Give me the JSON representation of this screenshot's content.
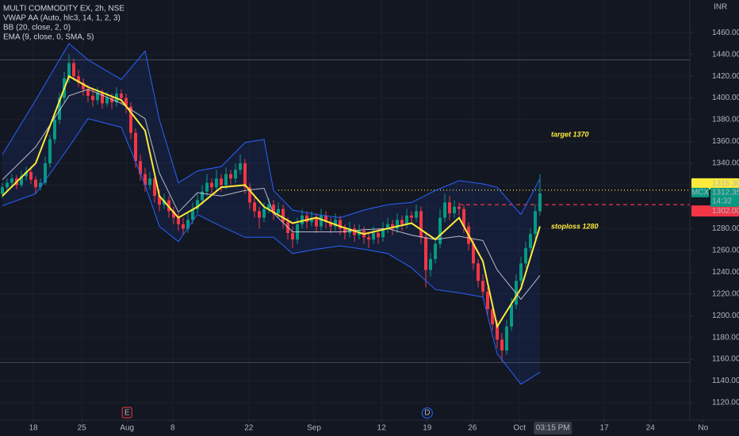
{
  "chart_data": {
    "type": "candlestick",
    "title": "MULTI COMMODITY EX, 2h, NSE",
    "indicator_labels": [
      "VWAP AA (Auto, hlc3, 14, 1, 2, 3)",
      "BB (20, close, 2, 0)",
      "EMA (9, close, 0, SMA, 5)"
    ],
    "currency": "INR",
    "up_color": "#089981",
    "down_color": "#f23645",
    "xlim": [
      -0.5,
      154.83
    ],
    "ylim": [
      1104,
      1490
    ],
    "grid": true,
    "xticks": [
      {
        "value": 6.5,
        "label": "18"
      },
      {
        "value": 16.7,
        "label": "25"
      },
      {
        "value": 26.2,
        "label": "Aug"
      },
      {
        "value": 35.8,
        "label": "8"
      },
      {
        "value": 51.8,
        "label": "22"
      },
      {
        "value": 65.5,
        "label": "Sep"
      },
      {
        "value": 79.7,
        "label": "12"
      },
      {
        "value": 89.3,
        "label": "19"
      },
      {
        "value": 98.8,
        "label": "26"
      },
      {
        "value": 108.7,
        "label": "Oct"
      },
      {
        "value": 115.7,
        "label": "03:15 PM"
      },
      {
        "value": 126.5,
        "label": "17"
      },
      {
        "value": 136.2,
        "label": "24"
      },
      {
        "value": 147.3,
        "label": "No"
      }
    ],
    "yticks": [
      {
        "value": 1120,
        "label": "1120.00"
      },
      {
        "value": 1140,
        "label": "1140.00"
      },
      {
        "value": 1160,
        "label": "1160.00"
      },
      {
        "value": 1180,
        "label": "1180.00"
      },
      {
        "value": 1200,
        "label": "1200.00"
      },
      {
        "value": 1220,
        "label": "1220.00"
      },
      {
        "value": 1240,
        "label": "1240.00"
      },
      {
        "value": 1260,
        "label": "1260.00"
      },
      {
        "value": 1280,
        "label": "1280.00"
      },
      {
        "value": 1300,
        "label": "1300.00"
      },
      {
        "value": 1320,
        "label": "1320.00"
      },
      {
        "value": 1340,
        "label": "1340.00"
      },
      {
        "value": 1360,
        "label": "1360.00"
      },
      {
        "value": 1380,
        "label": "1380.00"
      },
      {
        "value": 1400,
        "label": "1400.00"
      },
      {
        "value": 1420,
        "label": "1420.00"
      },
      {
        "value": 1440,
        "label": "1440.00"
      },
      {
        "value": 1460,
        "label": "1460.00"
      }
    ],
    "candles": [
      [
        1312,
        1322,
        1308,
        1318
      ],
      [
        1318,
        1326,
        1314,
        1322
      ],
      [
        1322,
        1330,
        1318,
        1326
      ],
      [
        1326,
        1329,
        1316,
        1320
      ],
      [
        1320,
        1333,
        1318,
        1328
      ],
      [
        1328,
        1337,
        1324,
        1332
      ],
      [
        1332,
        1335,
        1321,
        1325
      ],
      [
        1325,
        1328,
        1312,
        1318
      ],
      [
        1318,
        1326,
        1315,
        1322
      ],
      [
        1322,
        1346,
        1320,
        1340
      ],
      [
        1340,
        1366,
        1336,
        1362
      ],
      [
        1362,
        1386,
        1358,
        1380
      ],
      [
        1380,
        1405,
        1376,
        1400
      ],
      [
        1400,
        1424,
        1396,
        1418
      ],
      [
        1418,
        1440,
        1414,
        1432
      ],
      [
        1432,
        1436,
        1416,
        1420
      ],
      [
        1420,
        1426,
        1410,
        1414
      ],
      [
        1414,
        1418,
        1402,
        1408
      ],
      [
        1408,
        1412,
        1396,
        1402
      ],
      [
        1402,
        1408,
        1392,
        1398
      ],
      [
        1398,
        1410,
        1394,
        1405
      ],
      [
        1405,
        1408,
        1390,
        1395
      ],
      [
        1395,
        1406,
        1392,
        1400
      ],
      [
        1400,
        1404,
        1390,
        1396
      ],
      [
        1396,
        1410,
        1392,
        1404
      ],
      [
        1404,
        1408,
        1394,
        1400
      ],
      [
        1400,
        1404,
        1386,
        1392
      ],
      [
        1392,
        1396,
        1362,
        1368
      ],
      [
        1368,
        1372,
        1336,
        1342
      ],
      [
        1342,
        1348,
        1324,
        1330
      ],
      [
        1330,
        1336,
        1314,
        1320
      ],
      [
        1320,
        1332,
        1316,
        1326
      ],
      [
        1326,
        1330,
        1304,
        1310
      ],
      [
        1310,
        1316,
        1296,
        1302
      ],
      [
        1302,
        1312,
        1298,
        1306
      ],
      [
        1306,
        1310,
        1290,
        1296
      ],
      [
        1296,
        1300,
        1284,
        1290
      ],
      [
        1290,
        1294,
        1278,
        1284
      ],
      [
        1284,
        1290,
        1274,
        1280
      ],
      [
        1280,
        1294,
        1276,
        1288
      ],
      [
        1288,
        1304,
        1284,
        1298
      ],
      [
        1298,
        1312,
        1294,
        1306
      ],
      [
        1306,
        1320,
        1302,
        1314
      ],
      [
        1314,
        1330,
        1310,
        1322
      ],
      [
        1322,
        1326,
        1312,
        1318
      ],
      [
        1318,
        1334,
        1314,
        1326
      ],
      [
        1326,
        1330,
        1314,
        1320
      ],
      [
        1320,
        1336,
        1316,
        1330
      ],
      [
        1330,
        1334,
        1320,
        1326
      ],
      [
        1326,
        1340,
        1322,
        1334
      ],
      [
        1334,
        1348,
        1330,
        1340
      ],
      [
        1340,
        1344,
        1312,
        1318
      ],
      [
        1318,
        1322,
        1298,
        1304
      ],
      [
        1304,
        1310,
        1290,
        1296
      ],
      [
        1296,
        1300,
        1280,
        1290
      ],
      [
        1290,
        1304,
        1286,
        1298
      ],
      [
        1298,
        1308,
        1294,
        1302
      ],
      [
        1302,
        1306,
        1288,
        1294
      ],
      [
        1294,
        1304,
        1290,
        1298
      ],
      [
        1298,
        1302,
        1280,
        1286
      ],
      [
        1286,
        1290,
        1270,
        1276
      ],
      [
        1276,
        1282,
        1262,
        1270
      ],
      [
        1270,
        1290,
        1266,
        1284
      ],
      [
        1284,
        1298,
        1280,
        1292
      ],
      [
        1292,
        1296,
        1280,
        1286
      ],
      [
        1286,
        1296,
        1282,
        1290
      ],
      [
        1290,
        1294,
        1276,
        1282
      ],
      [
        1282,
        1298,
        1278,
        1292
      ],
      [
        1292,
        1296,
        1280,
        1286
      ],
      [
        1286,
        1290,
        1276,
        1282
      ],
      [
        1282,
        1294,
        1278,
        1288
      ],
      [
        1288,
        1292,
        1274,
        1280
      ],
      [
        1280,
        1284,
        1270,
        1276
      ],
      [
        1276,
        1286,
        1272,
        1280
      ],
      [
        1280,
        1284,
        1268,
        1274
      ],
      [
        1274,
        1284,
        1270,
        1278
      ],
      [
        1278,
        1282,
        1266,
        1272
      ],
      [
        1272,
        1276,
        1262,
        1270
      ],
      [
        1270,
        1282,
        1266,
        1276
      ],
      [
        1276,
        1280,
        1266,
        1272
      ],
      [
        1272,
        1286,
        1268,
        1280
      ],
      [
        1280,
        1290,
        1276,
        1284
      ],
      [
        1284,
        1288,
        1274,
        1280
      ],
      [
        1280,
        1294,
        1276,
        1288
      ],
      [
        1288,
        1292,
        1278,
        1284
      ],
      [
        1284,
        1298,
        1280,
        1292
      ],
      [
        1292,
        1296,
        1284,
        1290
      ],
      [
        1290,
        1302,
        1286,
        1296
      ],
      [
        1296,
        1300,
        1266,
        1272
      ],
      [
        1272,
        1276,
        1226,
        1242
      ],
      [
        1242,
        1258,
        1236,
        1252
      ],
      [
        1252,
        1272,
        1248,
        1266
      ],
      [
        1266,
        1298,
        1262,
        1290
      ],
      [
        1290,
        1312,
        1286,
        1304
      ],
      [
        1304,
        1310,
        1288,
        1294
      ],
      [
        1294,
        1306,
        1290,
        1300
      ],
      [
        1300,
        1304,
        1292,
        1298
      ],
      [
        1298,
        1302,
        1276,
        1282
      ],
      [
        1282,
        1286,
        1260,
        1266
      ],
      [
        1266,
        1270,
        1242,
        1248
      ],
      [
        1248,
        1252,
        1226,
        1232
      ],
      [
        1232,
        1238,
        1216,
        1222
      ],
      [
        1222,
        1226,
        1200,
        1206
      ],
      [
        1206,
        1212,
        1186,
        1192
      ],
      [
        1192,
        1196,
        1170,
        1178
      ],
      [
        1178,
        1184,
        1158,
        1168
      ],
      [
        1168,
        1196,
        1164,
        1190
      ],
      [
        1190,
        1216,
        1186,
        1210
      ],
      [
        1210,
        1238,
        1206,
        1232
      ],
      [
        1232,
        1254,
        1228,
        1248
      ],
      [
        1248,
        1268,
        1244,
        1262
      ],
      [
        1262,
        1280,
        1258,
        1275
      ],
      [
        1275,
        1302,
        1270,
        1296
      ],
      [
        1296,
        1330,
        1292,
        1312.35
      ]
    ],
    "overlay_x": [
      0,
      7,
      14,
      18,
      25,
      30,
      33,
      37,
      41,
      46,
      51,
      55,
      57,
      61,
      66,
      71,
      76,
      81,
      86,
      91,
      96,
      101,
      104,
      109,
      113
    ],
    "band_fill": "rgba(41,98,255,0.10)",
    "overlays": [
      {
        "color": "#2962ff",
        "values": [
          1348,
          1398,
          1450,
          1435,
          1417,
          1443,
          1380,
          1322,
          1333,
          1337,
          1359,
          1362,
          1315,
          1297,
          1293,
          1290,
          1297,
          1302,
          1304,
          1315,
          1324,
          1321,
          1318,
          1293,
          1326
        ]
      },
      {
        "color": "#2962ff",
        "values": [
          1301,
          1312,
          1355,
          1381,
          1373,
          1320,
          1282,
          1268,
          1293,
          1282,
          1272,
          1272,
          1272,
          1257,
          1261,
          1264,
          1261,
          1257,
          1244,
          1224,
          1221,
          1217,
          1165,
          1137,
          1148
        ]
      },
      {
        "color": "#e0e3eb",
        "values": [
          1325,
          1355,
          1402,
          1408,
          1395,
          1381,
          1331,
          1295,
          1313,
          1310,
          1315,
          1317,
          1294,
          1277,
          1277,
          1277,
          1279,
          1280,
          1274,
          1270,
          1273,
          1269,
          1242,
          1215,
          1237
        ]
      },
      {
        "color": "#ffeb3b",
        "values": [
          1310,
          1340,
          1420,
          1410,
          1398,
          1370,
          1310,
          1290,
          1300,
          1318,
          1320,
          1300,
          1295,
          1285,
          1290,
          1282,
          1275,
          1280,
          1285,
          1270,
          1290,
          1250,
          1190,
          1225,
          1282
        ]
      }
    ],
    "levels": [
      {
        "value": 1435,
        "color": "#787b86",
        "start": -0.5
      },
      {
        "value": 1157,
        "color": "#787b86",
        "start": -0.5
      },
      {
        "value": 1315.3,
        "label": "1315.30",
        "color": "#ffeb3b",
        "start": 58
      },
      {
        "value": 1302,
        "label": "1302.00",
        "color": "#f23645",
        "start": 96
      }
    ],
    "symbol": "MCX",
    "last_price": 1312.35,
    "countdown": "14:32",
    "annotations": [
      "target 1370",
      "stoploss 1280"
    ],
    "events": [
      {
        "label": "E",
        "x": 26.2,
        "color": "#f23645"
      },
      {
        "label": "D",
        "x": 89.3,
        "color": "#2962ff"
      }
    ]
  }
}
